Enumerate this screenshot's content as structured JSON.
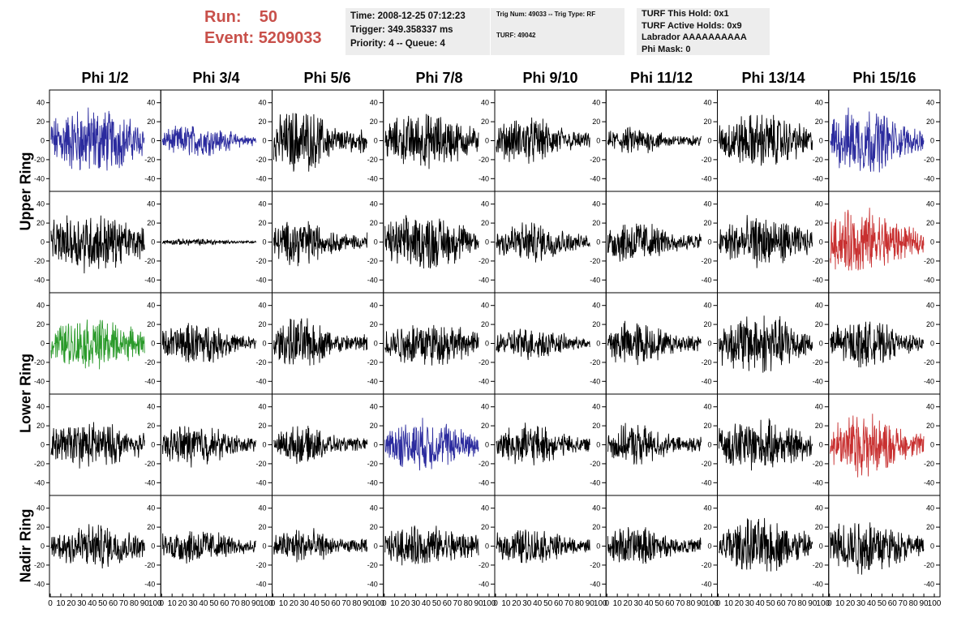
{
  "header": {
    "run_label": "Run:",
    "run_value": "50",
    "event_label": "Event:",
    "event_value": "5209033"
  },
  "info_panel_1": {
    "time": "Time: 2008-12-25 07:12:23",
    "trigger": "Trigger: 349.358337 ms",
    "priority": "Priority: 4 -- Queue: 4"
  },
  "info_panel_2": {
    "trig": "Trig Num: 49033 -- Trig Type: RF",
    "turf": "TURF: 49042"
  },
  "info_panel_3": {
    "hold": "TURF This Hold: 0x1",
    "active": "TURF Active Holds: 0x9",
    "labrador": "Labrador AAAAAAAAAA",
    "phimask": "Phi Mask: 0"
  },
  "colors": {
    "default_trace": "#000000",
    "blue_trace": "#2b2b9e",
    "red_trace": "#c83030",
    "green_trace": "#2a9a2a",
    "header_red": "#c8504a",
    "info_bg": "#ededed"
  },
  "chart_data": {
    "type": "line",
    "columns": [
      "Phi 1/2",
      "Phi 3/4",
      "Phi 5/6",
      "Phi 7/8",
      "Phi 9/10",
      "Phi 11/12",
      "Phi 13/14",
      "Phi 15/16"
    ],
    "rows": [
      "Upper Ring",
      "Lower Ring",
      "Nadir Ring"
    ],
    "y_ticks": [
      "40",
      "20",
      "0",
      "-20",
      "-40"
    ],
    "y_tick_values": [
      40,
      20,
      0,
      -20,
      -40
    ],
    "ylim": [
      -50,
      50
    ],
    "x_ticks": [
      "0",
      "10",
      "20",
      "30",
      "40",
      "50",
      "60",
      "70",
      "80",
      "90",
      "100"
    ],
    "x_tick_values": [
      0,
      10,
      20,
      30,
      40,
      50,
      60,
      70,
      80,
      90,
      100
    ],
    "xlim": [
      0,
      100
    ],
    "grid": false,
    "panel_rows": 5,
    "row_label_spans": [
      [
        0,
        2
      ],
      [
        2,
        4
      ],
      [
        4,
        5
      ]
    ],
    "highlighted_panels": [
      {
        "row": 0,
        "col": 0,
        "color": "blue"
      },
      {
        "row": 0,
        "col": 1,
        "color": "blue"
      },
      {
        "row": 0,
        "col": 7,
        "color": "blue"
      },
      {
        "row": 1,
        "col": 7,
        "color": "red"
      },
      {
        "row": 2,
        "col": 0,
        "color": "green"
      },
      {
        "row": 3,
        "col": 3,
        "color": "blue"
      },
      {
        "row": 3,
        "col": 7,
        "color": "red"
      }
    ],
    "amplitudes": [
      [
        30,
        14,
        28,
        24,
        20,
        12,
        24,
        30
      ],
      [
        26,
        3,
        20,
        24,
        18,
        20,
        22,
        30
      ],
      [
        22,
        18,
        22,
        20,
        14,
        20,
        26,
        20
      ],
      [
        20,
        18,
        16,
        22,
        18,
        18,
        22,
        28
      ],
      [
        20,
        16,
        16,
        18,
        16,
        18,
        24,
        26
      ]
    ],
    "samples_per_trace": 260
  }
}
